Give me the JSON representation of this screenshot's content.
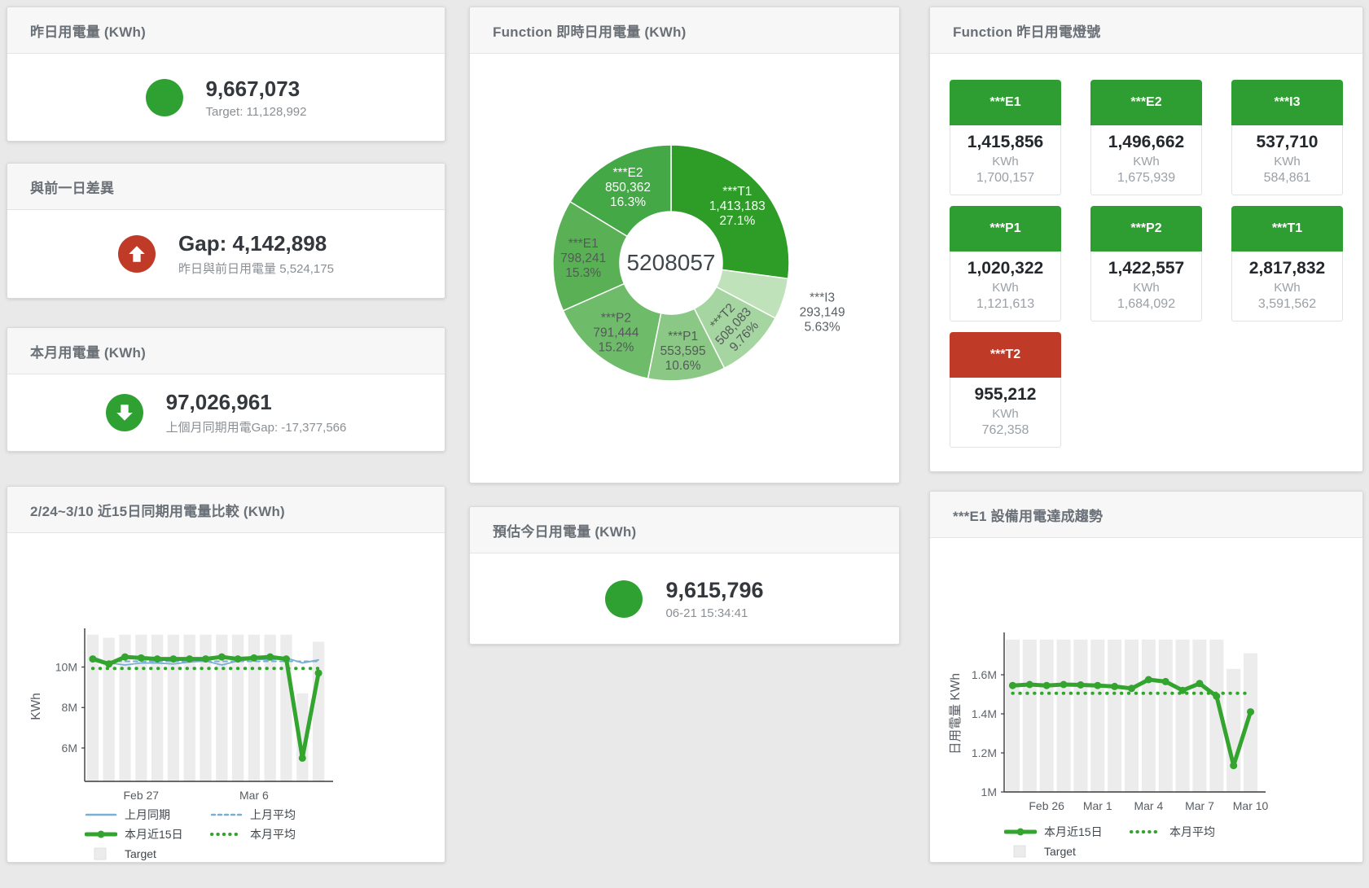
{
  "colors": {
    "green": "#2fa133",
    "red": "#bf3a27",
    "tile_green": "#2f9e32",
    "tile_red": "#bf3a27",
    "blue_line": "#7aafd4",
    "green_line": "#33a42e",
    "target_bar": "#ececec"
  },
  "panels": {
    "yesterday": {
      "title": "昨日用電量 (KWh)",
      "value": "9,667,073",
      "sub": "Target: 11,128,992"
    },
    "gap_prev_day": {
      "title": "與前一日差異",
      "value": "Gap: 4,142,898",
      "sub": "昨日與前日用電量 5,524,175"
    },
    "month": {
      "title": "本月用電量 (KWh)",
      "value": "97,026,961",
      "sub": "上個月同期用電Gap: -17,377,566"
    },
    "compare15": {
      "title": "2/24~3/10 近15日同期用電量比較 (KWh)"
    },
    "realtime_donut": {
      "title": "Function 即時日用電量 (KWh)",
      "center_label": "5208057"
    },
    "estimate_today": {
      "title": "預估今日用電量 (KWh)",
      "value": "9,615,796",
      "sub": "06-21 15:34:41"
    },
    "lights": {
      "title": "Function 昨日用電燈號",
      "tiles": [
        {
          "label": "***E1",
          "value": "1,415,856",
          "unit": "KWh",
          "target": "1,700,157",
          "status": "green"
        },
        {
          "label": "***E2",
          "value": "1,496,662",
          "unit": "KWh",
          "target": "1,675,939",
          "status": "green"
        },
        {
          "label": "***I3",
          "value": "537,710",
          "unit": "KWh",
          "target": "584,861",
          "status": "green"
        },
        {
          "label": "***P1",
          "value": "1,020,322",
          "unit": "KWh",
          "target": "1,121,613",
          "status": "green"
        },
        {
          "label": "***P2",
          "value": "1,422,557",
          "unit": "KWh",
          "target": "1,684,092",
          "status": "green"
        },
        {
          "label": "***T1",
          "value": "2,817,832",
          "unit": "KWh",
          "target": "3,591,562",
          "status": "green"
        },
        {
          "label": "***T2",
          "value": "955,212",
          "unit": "KWh",
          "target": "762,358",
          "status": "red"
        }
      ]
    },
    "e1_trend": {
      "title": "***E1 設備用電達成趨勢"
    }
  },
  "chart_data": [
    {
      "type": "pie",
      "name": "function-realtime-donut",
      "title": "Function 即時日用電量 (KWh)",
      "center_label": "5208057",
      "slices": [
        {
          "label": "***T1",
          "value": 1413183,
          "value_text": "1,413,183",
          "pct": 27.1,
          "pct_text": "27.1%",
          "color": "#2e9d28",
          "text_color": "#ffffff"
        },
        {
          "label": "***I3",
          "value": 293149,
          "value_text": "293,149",
          "pct": 5.63,
          "pct_text": "5.63%",
          "color": "#c0e2bb",
          "text_color": "#5a6065",
          "outside": true
        },
        {
          "label": "***T2",
          "value": 508083,
          "value_text": "508,083",
          "pct": 9.76,
          "pct_text": "9.76%",
          "color": "#a5d5a0",
          "text_color": "#545a5a",
          "rotate": -47
        },
        {
          "label": "***P1",
          "value": 553595,
          "value_text": "553,595",
          "pct": 10.6,
          "pct_text": "10.6%",
          "color": "#8bc885",
          "text_color": "#545a5a"
        },
        {
          "label": "***P2",
          "value": 791444,
          "value_text": "791,444",
          "pct": 15.2,
          "pct_text": "15.2%",
          "color": "#6ebb69",
          "text_color": "#545a5a"
        },
        {
          "label": "***E1",
          "value": 798241,
          "value_text": "798,241",
          "pct": 15.3,
          "pct_text": "15.3%",
          "color": "#5ab055",
          "text_color": "#545a5a"
        },
        {
          "label": "***E2",
          "value": 850362,
          "value_text": "850,362",
          "pct": 16.3,
          "pct_text": "16.3%",
          "color": "#45a847",
          "text_color": "#ffffff"
        }
      ]
    },
    {
      "type": "line",
      "name": "compare-15day",
      "title": "2/24~3/10 近15日同期用電量比較 (KWh)",
      "categories": [
        "Feb 24",
        "Feb 25",
        "Feb 26",
        "Feb 27",
        "Feb 28",
        "Mar 1",
        "Mar 2",
        "Mar 3",
        "Mar 4",
        "Mar 5",
        "Mar 6",
        "Mar 7",
        "Mar 8",
        "Mar 9",
        "Mar 10"
      ],
      "xticks": [
        {
          "index": 3,
          "label": "Feb 27"
        },
        {
          "index": 10,
          "label": "Mar 6"
        }
      ],
      "ylabel": "KWh",
      "ylim": [
        4350000,
        11750000
      ],
      "yticks": [
        {
          "value": 6000000,
          "label": "6M"
        },
        {
          "value": 8000000,
          "label": "8M"
        },
        {
          "value": 10000000,
          "label": "10M"
        }
      ],
      "bars": {
        "name": "Target",
        "color": "#ececec",
        "values": [
          11600000,
          11450000,
          11600000,
          11600000,
          11600000,
          11600000,
          11600000,
          11600000,
          11600000,
          11600000,
          11600000,
          11600000,
          11600000,
          8700000,
          11250000
        ]
      },
      "series": [
        {
          "name": "上月同期",
          "color": "#7aafd4",
          "style": "solid-thin",
          "values": [
            10500000,
            10200000,
            10100000,
            10200000,
            10200000,
            10150000,
            10250000,
            10300000,
            10100000,
            10300000,
            10400000,
            10350000,
            10450000,
            10200000,
            10350000
          ]
        },
        {
          "name": "上月平均",
          "color": "#7aafd4",
          "style": "dashed",
          "values": [
            10280000,
            10280000,
            10280000,
            10280000,
            10280000,
            10280000,
            10280000,
            10280000,
            10280000,
            10280000,
            10280000,
            10280000,
            10280000,
            10280000,
            10280000
          ]
        },
        {
          "name": "本月近15日",
          "color": "#33a42e",
          "style": "solid-thick",
          "values": [
            10400000,
            10150000,
            10500000,
            10450000,
            10400000,
            10400000,
            10400000,
            10400000,
            10500000,
            10400000,
            10450000,
            10500000,
            10400000,
            5500000,
            9700000
          ]
        },
        {
          "name": "本月平均",
          "color": "#33a42e",
          "style": "dotted",
          "values": [
            9930000,
            9930000,
            9930000,
            9930000,
            9930000,
            9930000,
            9930000,
            9930000,
            9930000,
            9930000,
            9930000,
            9930000,
            9930000,
            9930000,
            9930000
          ]
        }
      ],
      "legend_rows": [
        [
          "上月同期",
          "上月平均"
        ],
        [
          "本月近15日",
          "本月平均"
        ],
        [
          "Target"
        ]
      ]
    },
    {
      "type": "line",
      "name": "e1-trend",
      "title": "***E1 設備用電達成趨勢",
      "categories": [
        "Feb 24",
        "Feb 25",
        "Feb 26",
        "Feb 27",
        "Feb 28",
        "Mar 1",
        "Mar 2",
        "Mar 3",
        "Mar 4",
        "Mar 5",
        "Mar 6",
        "Mar 7",
        "Mar 8",
        "Mar 9",
        "Mar 10"
      ],
      "xticks": [
        {
          "index": 2,
          "label": "Feb 26"
        },
        {
          "index": 5,
          "label": "Mar 1"
        },
        {
          "index": 8,
          "label": "Mar 4"
        },
        {
          "index": 11,
          "label": "Mar 7"
        },
        {
          "index": 14,
          "label": "Mar 10"
        }
      ],
      "ylabel": "日用電量 KWh",
      "ylim": [
        1000000,
        1800000
      ],
      "yticks": [
        {
          "value": 1000000,
          "label": "1M"
        },
        {
          "value": 1200000,
          "label": "1.2M"
        },
        {
          "value": 1400000,
          "label": "1.4M"
        },
        {
          "value": 1600000,
          "label": "1.6M"
        }
      ],
      "bars": {
        "name": "Target",
        "color": "#ececec",
        "values": [
          1780000,
          1780000,
          1780000,
          1780000,
          1780000,
          1780000,
          1780000,
          1780000,
          1780000,
          1780000,
          1780000,
          1780000,
          1780000,
          1630000,
          1710000
        ]
      },
      "series": [
        {
          "name": "本月近15日",
          "color": "#33a42e",
          "style": "solid-thick",
          "values": [
            1545000,
            1550000,
            1545000,
            1550000,
            1548000,
            1545000,
            1540000,
            1530000,
            1575000,
            1565000,
            1520000,
            1555000,
            1490000,
            1135000,
            1410000
          ]
        },
        {
          "name": "本月平均",
          "color": "#33a42e",
          "style": "dotted",
          "values": [
            1505000,
            1505000,
            1505000,
            1505000,
            1505000,
            1505000,
            1505000,
            1505000,
            1505000,
            1505000,
            1505000,
            1505000,
            1505000,
            1505000,
            1505000
          ]
        }
      ],
      "legend_rows": [
        [
          "本月近15日",
          "本月平均"
        ],
        [
          "Target"
        ]
      ]
    }
  ]
}
